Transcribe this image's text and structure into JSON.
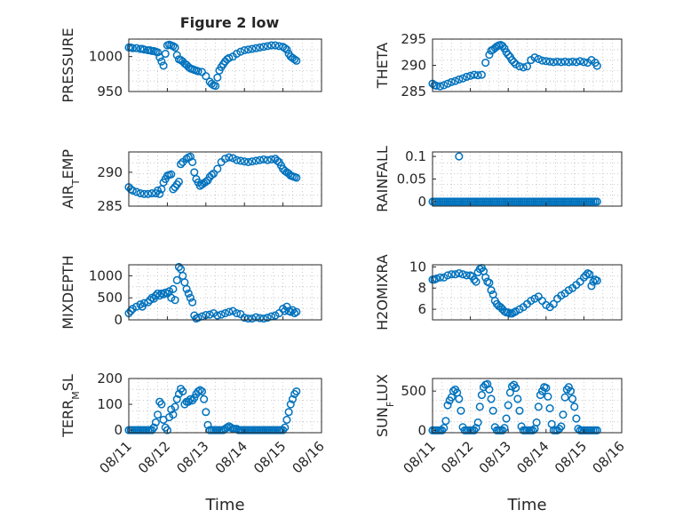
{
  "figure": {
    "title": "Figure 2 low",
    "xlabel": "Time",
    "colors": {
      "marker": "#0072BD",
      "axis": "#262626",
      "grid": "#bdbdbd"
    }
  },
  "chart_data": [
    {
      "type": "scatter",
      "ylabel": "PRESSURE",
      "yticks": [
        "950",
        "1000"
      ],
      "yticks_values": [
        950,
        1000
      ],
      "ylim": [
        950,
        1025
      ],
      "xlim": [
        0,
        5
      ],
      "grid": true,
      "x": [
        0.0,
        0.05,
        0.1,
        0.2,
        0.3,
        0.35,
        0.4,
        0.5,
        0.55,
        0.6,
        0.65,
        0.7,
        0.75,
        0.8,
        0.85,
        0.9,
        0.95,
        1.0,
        1.05,
        1.1,
        1.15,
        1.2,
        1.25,
        1.3,
        1.35,
        1.4,
        1.45,
        1.5,
        1.55,
        1.6,
        1.65,
        1.7,
        1.75,
        1.8,
        1.9,
        2.0,
        2.1,
        2.15,
        2.2,
        2.25,
        2.3,
        2.35,
        2.4,
        2.45,
        2.5,
        2.55,
        2.6,
        2.7,
        2.8,
        2.9,
        3.0,
        3.1,
        3.2,
        3.3,
        3.4,
        3.5,
        3.6,
        3.7,
        3.8,
        3.9,
        4.0,
        4.05,
        4.1,
        4.15,
        4.2,
        4.25,
        4.3,
        4.35
      ],
      "y": [
        1013,
        1013,
        1012,
        1012,
        1011,
        1011,
        1010,
        1009,
        1009,
        1008,
        1008,
        1007,
        1006,
        999,
        993,
        987,
        1004,
        1016,
        1017,
        1016,
        1015,
        1013,
        1002,
        996,
        995,
        993,
        990,
        988,
        985,
        983,
        982,
        981,
        980,
        979,
        978,
        972,
        964,
        961,
        959,
        958,
        970,
        980,
        985,
        989,
        993,
        996,
        998,
        1000,
        1004,
        1007,
        1009,
        1010,
        1011,
        1012,
        1013,
        1014,
        1015,
        1016,
        1016,
        1015,
        1014,
        1012,
        1010,
        1004,
        1000,
        998,
        996,
        994
      ]
    },
    {
      "type": "scatter",
      "ylabel": "THETA",
      "yticks": [
        "285",
        "290",
        "295"
      ],
      "yticks_values": [
        285,
        290,
        295
      ],
      "ylim": [
        285,
        295
      ],
      "xlim": [
        0,
        5
      ],
      "grid": true,
      "x": [
        0.0,
        0.05,
        0.1,
        0.2,
        0.3,
        0.4,
        0.5,
        0.6,
        0.7,
        0.8,
        0.9,
        1.0,
        1.1,
        1.2,
        1.3,
        1.4,
        1.5,
        1.55,
        1.6,
        1.65,
        1.7,
        1.75,
        1.8,
        1.85,
        1.9,
        1.95,
        2.0,
        2.05,
        2.1,
        2.15,
        2.2,
        2.3,
        2.4,
        2.5,
        2.6,
        2.7,
        2.8,
        2.9,
        3.0,
        3.1,
        3.2,
        3.3,
        3.4,
        3.5,
        3.6,
        3.7,
        3.8,
        3.9,
        4.0,
        4.1,
        4.2,
        4.3,
        4.35
      ],
      "y": [
        286.5,
        286.2,
        286.1,
        286.0,
        286.2,
        286.5,
        286.8,
        287.0,
        287.3,
        287.5,
        287.8,
        288.0,
        288.2,
        288.1,
        288.2,
        290.5,
        292.0,
        292.8,
        293.0,
        293.3,
        293.6,
        293.8,
        293.9,
        293.7,
        293.2,
        292.5,
        292.0,
        291.6,
        291.0,
        290.6,
        290.2,
        289.8,
        289.6,
        289.8,
        291.0,
        291.5,
        291.2,
        290.9,
        290.8,
        290.7,
        290.6,
        290.7,
        290.6,
        290.7,
        290.6,
        290.7,
        290.6,
        290.8,
        290.6,
        290.5,
        291.0,
        290.5,
        289.9
      ]
    },
    {
      "type": "scatter",
      "ylabel": "AIR_TEMP",
      "yticks": [
        "285",
        "290"
      ],
      "yticks_values": [
        285,
        290
      ],
      "ylim": [
        285,
        293
      ],
      "xlim": [
        0,
        5
      ],
      "grid": true,
      "x": [
        0.0,
        0.05,
        0.1,
        0.2,
        0.3,
        0.4,
        0.5,
        0.6,
        0.7,
        0.75,
        0.8,
        0.85,
        0.9,
        0.95,
        1.0,
        1.05,
        1.1,
        1.15,
        1.2,
        1.25,
        1.3,
        1.35,
        1.4,
        1.5,
        1.55,
        1.6,
        1.65,
        1.7,
        1.75,
        1.8,
        1.85,
        1.9,
        1.95,
        2.0,
        2.05,
        2.1,
        2.15,
        2.2,
        2.3,
        2.4,
        2.5,
        2.6,
        2.7,
        2.8,
        2.9,
        3.0,
        3.1,
        3.2,
        3.3,
        3.4,
        3.5,
        3.6,
        3.7,
        3.8,
        3.85,
        3.9,
        3.95,
        4.0,
        4.05,
        4.1,
        4.15,
        4.2,
        4.25,
        4.3,
        4.35
      ],
      "y": [
        287.8,
        287.5,
        287.3,
        287.1,
        286.9,
        286.8,
        286.8,
        286.9,
        286.9,
        287.3,
        286.8,
        287.5,
        288.5,
        289.0,
        289.5,
        289.6,
        289.7,
        287.5,
        287.8,
        288.2,
        288.6,
        291.2,
        291.5,
        292.0,
        292.2,
        292.3,
        291.5,
        290.0,
        289.0,
        288.5,
        288.0,
        288.2,
        288.4,
        288.6,
        288.8,
        289.3,
        289.6,
        289.8,
        290.5,
        291.5,
        292.0,
        292.2,
        292.1,
        291.8,
        291.7,
        291.6,
        291.5,
        291.6,
        291.7,
        291.8,
        291.9,
        291.8,
        291.9,
        292.0,
        291.7,
        291.5,
        291.0,
        290.5,
        290.2,
        290.0,
        289.8,
        289.5,
        289.4,
        289.3,
        289.2
      ]
    },
    {
      "type": "scatter",
      "ylabel": "RAINFALL",
      "yticks": [
        "0",
        "0.05",
        "0.1"
      ],
      "yticks_values": [
        0,
        0.05,
        0.1
      ],
      "ylim": [
        -0.01,
        0.11
      ],
      "xlim": [
        0,
        5
      ],
      "grid": true,
      "x": [
        0.0,
        0.05,
        0.1,
        0.15,
        0.2,
        0.25,
        0.3,
        0.35,
        0.4,
        0.45,
        0.5,
        0.55,
        0.6,
        0.65,
        0.7,
        0.75,
        0.8,
        0.85,
        0.9,
        0.95,
        1.0,
        1.05,
        1.1,
        1.15,
        1.2,
        1.25,
        1.3,
        1.35,
        1.4,
        1.45,
        1.5,
        1.55,
        1.6,
        1.65,
        1.7,
        1.75,
        1.8,
        1.85,
        1.9,
        1.95,
        2.0,
        2.05,
        2.1,
        2.15,
        2.2,
        2.25,
        2.3,
        2.35,
        2.4,
        2.45,
        2.5,
        2.55,
        2.6,
        2.65,
        2.7,
        2.75,
        2.8,
        2.85,
        2.9,
        2.95,
        3.0,
        3.05,
        3.1,
        3.15,
        3.2,
        3.25,
        3.3,
        3.35,
        3.4,
        3.45,
        3.5,
        3.55,
        3.6,
        3.65,
        3.7,
        3.75,
        3.8,
        3.85,
        3.9,
        3.95,
        4.0,
        4.05,
        4.1,
        4.15,
        4.2,
        4.25,
        4.3,
        4.35,
        0.7
      ],
      "y": [
        0,
        0,
        0,
        0,
        0,
        0,
        0,
        0,
        0,
        0,
        0,
        0,
        0,
        0,
        0,
        0,
        0,
        0,
        0,
        0,
        0,
        0,
        0,
        0,
        0,
        0,
        0,
        0,
        0,
        0,
        0,
        0,
        0,
        0,
        0,
        0,
        0,
        0,
        0,
        0,
        0,
        0,
        0,
        0,
        0,
        0,
        0,
        0,
        0,
        0,
        0,
        0,
        0,
        0,
        0,
        0,
        0,
        0,
        0,
        0,
        0,
        0,
        0,
        0,
        0,
        0,
        0,
        0,
        0,
        0,
        0,
        0,
        0,
        0,
        0,
        0,
        0,
        0,
        0,
        0,
        0,
        0,
        0,
        0,
        0,
        0,
        0,
        0,
        0.1
      ]
    },
    {
      "type": "scatter",
      "ylabel": "MIXDEPTH",
      "yticks": [
        "0",
        "500",
        "1000"
      ],
      "yticks_values": [
        0,
        500,
        1000
      ],
      "ylim": [
        0,
        1250
      ],
      "xlim": [
        0,
        5
      ],
      "grid": true,
      "x": [
        0.0,
        0.05,
        0.1,
        0.2,
        0.3,
        0.35,
        0.4,
        0.5,
        0.55,
        0.6,
        0.65,
        0.7,
        0.75,
        0.8,
        0.85,
        0.9,
        0.95,
        1.0,
        1.05,
        1.1,
        1.15,
        1.2,
        1.25,
        1.3,
        1.35,
        1.4,
        1.45,
        1.5,
        1.55,
        1.6,
        1.65,
        1.7,
        1.75,
        1.8,
        1.9,
        2.0,
        2.1,
        2.2,
        2.3,
        2.4,
        2.5,
        2.6,
        2.7,
        2.8,
        2.9,
        3.0,
        3.1,
        3.2,
        3.3,
        3.4,
        3.5,
        3.6,
        3.7,
        3.8,
        3.9,
        4.0,
        4.05,
        4.1,
        4.15,
        4.2,
        4.25,
        4.3,
        4.35
      ],
      "y": [
        150,
        200,
        250,
        300,
        350,
        300,
        380,
        400,
        450,
        500,
        480,
        550,
        600,
        550,
        600,
        580,
        620,
        600,
        650,
        500,
        700,
        450,
        900,
        1200,
        1150,
        1000,
        850,
        700,
        600,
        500,
        400,
        100,
        30,
        50,
        80,
        110,
        120,
        150,
        100,
        120,
        150,
        180,
        200,
        150,
        130,
        50,
        30,
        30,
        60,
        40,
        30,
        50,
        80,
        100,
        150,
        250,
        200,
        300,
        200,
        180,
        220,
        150,
        180
      ]
    },
    {
      "type": "scatter",
      "ylabel": "H2OMIXRA",
      "yticks": [
        "6",
        "8",
        "10"
      ],
      "yticks_values": [
        6,
        8,
        10
      ],
      "ylim": [
        5,
        10.2
      ],
      "xlim": [
        0,
        5
      ],
      "grid": true,
      "x": [
        0.0,
        0.05,
        0.1,
        0.2,
        0.3,
        0.4,
        0.5,
        0.6,
        0.7,
        0.8,
        0.9,
        1.0,
        1.05,
        1.1,
        1.15,
        1.2,
        1.25,
        1.3,
        1.35,
        1.4,
        1.45,
        1.5,
        1.55,
        1.6,
        1.65,
        1.7,
        1.75,
        1.8,
        1.85,
        1.9,
        1.95,
        2.0,
        2.05,
        2.1,
        2.15,
        2.2,
        2.3,
        2.4,
        2.5,
        2.6,
        2.7,
        2.8,
        2.9,
        3.0,
        3.1,
        3.2,
        3.3,
        3.4,
        3.5,
        3.6,
        3.7,
        3.8,
        3.9,
        4.0,
        4.05,
        4.1,
        4.15,
        4.2,
        4.25,
        4.3,
        4.35
      ],
      "y": [
        8.8,
        8.8,
        8.9,
        9.0,
        9.0,
        9.2,
        9.3,
        9.3,
        9.4,
        9.3,
        9.2,
        9.2,
        9.1,
        8.8,
        8.6,
        9.5,
        9.8,
        9.9,
        9.6,
        9.0,
        8.6,
        8.5,
        7.8,
        7.4,
        6.8,
        6.5,
        6.3,
        6.2,
        6.0,
        5.8,
        5.7,
        5.7,
        5.6,
        5.6,
        5.7,
        5.8,
        6.0,
        6.2,
        6.5,
        6.8,
        7.0,
        7.2,
        6.8,
        6.4,
        6.2,
        6.5,
        7.0,
        7.3,
        7.5,
        7.8,
        8.0,
        8.3,
        8.6,
        9.0,
        9.2,
        9.4,
        9.3,
        8.2,
        8.6,
        8.8,
        8.7
      ]
    },
    {
      "type": "scatter",
      "ylabel": "TERR_MSL",
      "yticks": [
        "0",
        "100",
        "200"
      ],
      "yticks_values": [
        0,
        100,
        200
      ],
      "ylim": [
        -10,
        200
      ],
      "xlim": [
        0,
        5
      ],
      "grid": true,
      "x": [
        0.0,
        0.05,
        0.1,
        0.15,
        0.2,
        0.25,
        0.3,
        0.35,
        0.4,
        0.45,
        0.5,
        0.55,
        0.6,
        0.65,
        0.7,
        0.75,
        0.8,
        0.85,
        0.9,
        0.95,
        1.0,
        1.05,
        1.1,
        1.15,
        1.2,
        1.25,
        1.3,
        1.35,
        1.4,
        1.45,
        1.5,
        1.55,
        1.6,
        1.65,
        1.7,
        1.75,
        1.8,
        1.85,
        1.9,
        1.95,
        2.0,
        2.05,
        2.1,
        2.15,
        2.2,
        2.25,
        2.3,
        2.35,
        2.4,
        2.45,
        2.5,
        2.55,
        2.6,
        2.65,
        2.7,
        2.75,
        2.8,
        2.85,
        2.9,
        2.95,
        3.0,
        3.05,
        3.1,
        3.15,
        3.2,
        3.25,
        3.3,
        3.35,
        3.4,
        3.45,
        3.5,
        3.55,
        3.6,
        3.65,
        3.7,
        3.75,
        3.8,
        3.85,
        3.9,
        3.95,
        4.0,
        4.05,
        4.1,
        4.15,
        4.2,
        4.25,
        4.3,
        4.35
      ],
      "y": [
        0,
        0,
        0,
        0,
        0,
        0,
        0,
        0,
        0,
        0,
        0,
        0,
        0,
        10,
        30,
        60,
        110,
        100,
        40,
        10,
        0,
        50,
        80,
        60,
        90,
        120,
        140,
        160,
        150,
        100,
        110,
        110,
        120,
        115,
        125,
        140,
        150,
        155,
        150,
        120,
        70,
        20,
        0,
        0,
        0,
        0,
        0,
        0,
        0,
        0,
        5,
        10,
        15,
        10,
        5,
        5,
        5,
        0,
        0,
        0,
        0,
        0,
        0,
        0,
        0,
        0,
        0,
        0,
        0,
        0,
        0,
        0,
        0,
        0,
        0,
        0,
        0,
        0,
        0,
        0,
        0,
        10,
        40,
        70,
        100,
        120,
        140,
        150
      ]
    },
    {
      "type": "scatter",
      "ylabel": "SUN_FLUX",
      "yticks": [
        "0",
        "500"
      ],
      "yticks_values": [
        0,
        500
      ],
      "ylim": [
        -30,
        660
      ],
      "xlim": [
        0,
        5
      ],
      "grid": true,
      "x": [
        0.0,
        0.05,
        0.1,
        0.15,
        0.2,
        0.25,
        0.3,
        0.35,
        0.4,
        0.45,
        0.5,
        0.55,
        0.6,
        0.65,
        0.7,
        0.75,
        0.8,
        0.85,
        0.9,
        0.95,
        1.0,
        1.05,
        1.1,
        1.15,
        1.2,
        1.25,
        1.3,
        1.35,
        1.4,
        1.45,
        1.5,
        1.55,
        1.6,
        1.65,
        1.7,
        1.75,
        1.8,
        1.85,
        1.9,
        1.95,
        2.0,
        2.05,
        2.1,
        2.15,
        2.2,
        2.25,
        2.3,
        2.35,
        2.4,
        2.45,
        2.5,
        2.55,
        2.6,
        2.65,
        2.7,
        2.75,
        2.8,
        2.85,
        2.9,
        2.95,
        3.0,
        3.05,
        3.1,
        3.15,
        3.2,
        3.25,
        3.3,
        3.35,
        3.4,
        3.45,
        3.5,
        3.55,
        3.6,
        3.65,
        3.7,
        3.75,
        3.8,
        3.85,
        3.9,
        3.95,
        4.0,
        4.05,
        4.1,
        4.15,
        4.2,
        4.25,
        4.3,
        4.35
      ],
      "y": [
        0,
        0,
        0,
        0,
        0,
        0,
        30,
        120,
        320,
        380,
        420,
        500,
        520,
        480,
        400,
        250,
        40,
        0,
        0,
        0,
        0,
        0,
        0,
        30,
        100,
        300,
        450,
        550,
        580,
        590,
        520,
        400,
        250,
        40,
        0,
        0,
        0,
        0,
        30,
        150,
        320,
        480,
        560,
        580,
        540,
        400,
        250,
        50,
        0,
        0,
        0,
        0,
        0,
        0,
        20,
        100,
        300,
        450,
        500,
        550,
        540,
        430,
        280,
        80,
        0,
        0,
        0,
        20,
        50,
        200,
        420,
        520,
        550,
        500,
        400,
        300,
        150,
        20,
        0,
        0,
        0,
        0,
        0,
        0,
        0,
        0,
        0,
        0
      ]
    }
  ],
  "x_ticks": [
    "08/11",
    "08/12",
    "08/13",
    "08/14",
    "08/15",
    "08/16"
  ]
}
